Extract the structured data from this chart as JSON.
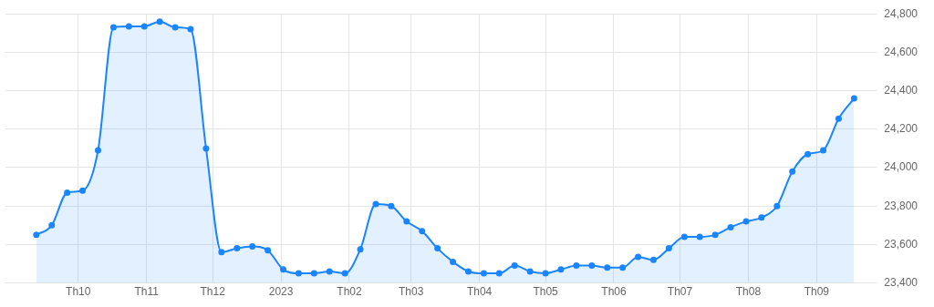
{
  "chart_data": {
    "type": "area",
    "x": [
      "2022-09-12",
      "2022-09-19",
      "2022-09-26",
      "2022-10-03",
      "2022-10-10",
      "2022-10-17",
      "2022-10-24",
      "2022-10-31",
      "2022-11-07",
      "2022-11-14",
      "2022-11-21",
      "2022-11-28",
      "2022-12-05",
      "2022-12-12",
      "2022-12-19",
      "2022-12-26",
      "2023-01-02",
      "2023-01-09",
      "2023-01-16",
      "2023-01-23",
      "2023-01-30",
      "2023-02-06",
      "2023-02-13",
      "2023-02-20",
      "2023-02-27",
      "2023-03-06",
      "2023-03-13",
      "2023-03-20",
      "2023-03-27",
      "2023-04-03",
      "2023-04-10",
      "2023-04-17",
      "2023-04-24",
      "2023-05-01",
      "2023-05-08",
      "2023-05-15",
      "2023-05-22",
      "2023-05-29",
      "2023-06-05",
      "2023-06-12",
      "2023-06-19",
      "2023-06-26",
      "2023-07-03",
      "2023-07-10",
      "2023-07-17",
      "2023-07-24",
      "2023-07-31",
      "2023-08-07",
      "2023-08-14",
      "2023-08-21",
      "2023-08-28",
      "2023-09-04",
      "2023-09-11",
      "2023-09-18"
    ],
    "series": [
      {
        "color": "#1a85ff",
        "values": [
          23650,
          23700,
          23870,
          23880,
          24090,
          24730,
          24735,
          24735,
          24760,
          24730,
          24720,
          24100,
          23560,
          23580,
          23590,
          23570,
          23470,
          23450,
          23450,
          23460,
          23450,
          23575,
          23810,
          23800,
          23720,
          23670,
          23580,
          23510,
          23460,
          23450,
          23450,
          23490,
          23460,
          23450,
          23470,
          23490,
          23490,
          23480,
          23480,
          23535,
          23520,
          23580,
          23640,
          23640,
          23650,
          23690,
          23720,
          23740,
          23800,
          23980,
          24070,
          24090,
          24255,
          24360
        ]
      }
    ],
    "xlim": [
      "2022-08-29",
      "2023-09-25"
    ],
    "xticks": [
      {
        "value": "2022-10-01",
        "label": "Th10"
      },
      {
        "value": "2022-11-01",
        "label": "Th11"
      },
      {
        "value": "2022-12-01",
        "label": "Th12"
      },
      {
        "value": "2023-01-01",
        "label": "2023"
      },
      {
        "value": "2023-02-01",
        "label": "Th02"
      },
      {
        "value": "2023-03-01",
        "label": "Th03"
      },
      {
        "value": "2023-04-01",
        "label": "Th04"
      },
      {
        "value": "2023-05-01",
        "label": "Th05"
      },
      {
        "value": "2023-06-01",
        "label": "Th06"
      },
      {
        "value": "2023-07-01",
        "label": "Th07"
      },
      {
        "value": "2023-08-01",
        "label": "Th08"
      },
      {
        "value": "2023-09-01",
        "label": "Th09"
      }
    ],
    "ylim": [
      23400,
      24800
    ],
    "yticks": [
      {
        "value": 23400,
        "label": "23,400"
      },
      {
        "value": 23600,
        "label": "23,600"
      },
      {
        "value": 23800,
        "label": "23,800"
      },
      {
        "value": 24000,
        "label": "24,000"
      },
      {
        "value": 24200,
        "label": "24,200"
      },
      {
        "value": 24400,
        "label": "24,400"
      },
      {
        "value": 24600,
        "label": "24,600"
      },
      {
        "value": 24800,
        "label": "24,800"
      }
    ],
    "grid": true,
    "legend": false,
    "marker": "circle",
    "line_style": "solid"
  }
}
